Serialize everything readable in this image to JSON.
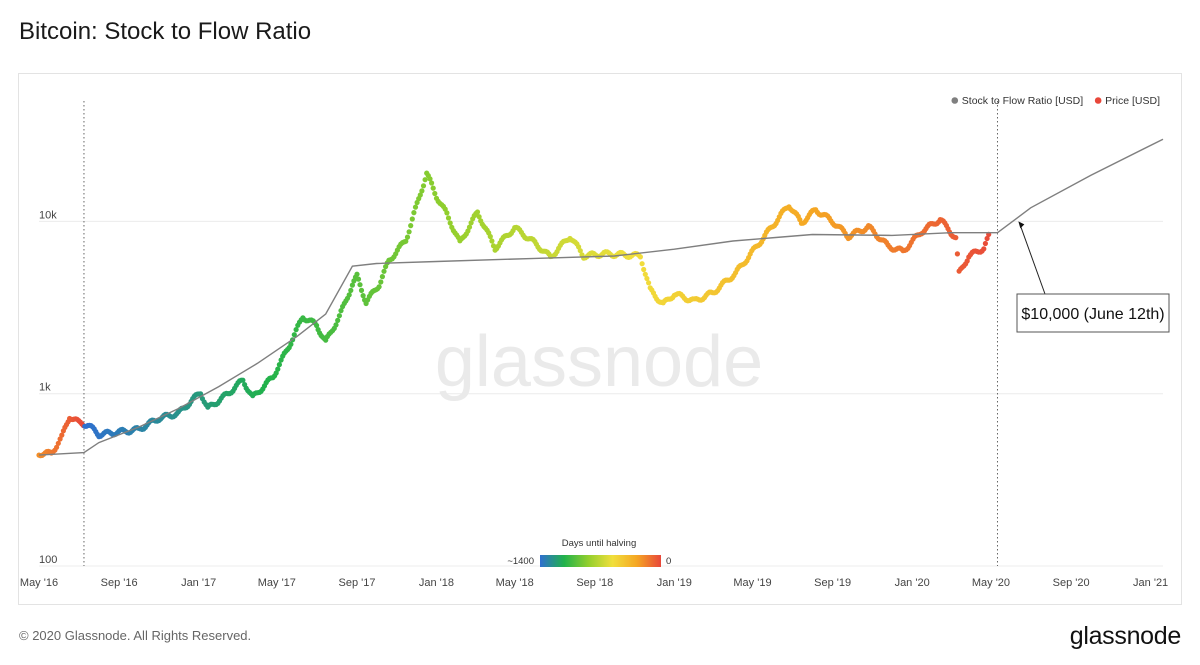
{
  "page": {
    "title": "Bitcoin: Stock to Flow Ratio",
    "copyright": "© 2020 Glassnode. All Rights Reserved.",
    "logo": "glassnode",
    "watermark": "glassnode"
  },
  "chart_data": {
    "type": "line",
    "title": "Bitcoin: Stock to Flow Ratio",
    "xlabel": "",
    "ylabel": "",
    "y_scale": "log",
    "ylim": [
      100,
      50000
    ],
    "y_ticks": [
      {
        "value": 100,
        "label": "100"
      },
      {
        "value": 1000,
        "label": "1k"
      },
      {
        "value": 10000,
        "label": "10k"
      }
    ],
    "xlim": [
      "2016-05-01",
      "2021-01-20"
    ],
    "x_ticks": [
      {
        "date": "2016-05-01",
        "label": "May '16"
      },
      {
        "date": "2016-09-01",
        "label": "Sep '16"
      },
      {
        "date": "2017-01-01",
        "label": "Jan '17"
      },
      {
        "date": "2017-05-01",
        "label": "May '17"
      },
      {
        "date": "2017-09-01",
        "label": "Sep '17"
      },
      {
        "date": "2018-01-01",
        "label": "Jan '18"
      },
      {
        "date": "2018-05-01",
        "label": "May '18"
      },
      {
        "date": "2018-09-01",
        "label": "Sep '18"
      },
      {
        "date": "2019-01-01",
        "label": "Jan '19"
      },
      {
        "date": "2019-05-01",
        "label": "May '19"
      },
      {
        "date": "2019-09-01",
        "label": "Sep '19"
      },
      {
        "date": "2020-01-01",
        "label": "Jan '20"
      },
      {
        "date": "2020-05-01",
        "label": "May '20"
      },
      {
        "date": "2020-09-01",
        "label": "Sep '20"
      },
      {
        "date": "2021-01-01",
        "label": "Jan '21"
      }
    ],
    "halving_lines": [
      "2016-07-09",
      "2020-05-11"
    ],
    "grid": true,
    "legend_position": "top-right",
    "legend": [
      {
        "name": "Stock to Flow Ratio [USD]",
        "color": "#7f7f7f"
      },
      {
        "name": "Price [USD]",
        "color": "#e8473a"
      }
    ],
    "series": [
      {
        "name": "Stock to Flow Ratio [USD]",
        "color": "#7f7f7f",
        "points": [
          [
            "2016-05-01",
            440
          ],
          [
            "2016-07-09",
            455
          ],
          [
            "2016-08-01",
            520
          ],
          [
            "2016-10-01",
            640
          ],
          [
            "2016-12-01",
            820
          ],
          [
            "2017-02-01",
            1100
          ],
          [
            "2017-04-01",
            1500
          ],
          [
            "2017-06-01",
            2150
          ],
          [
            "2017-07-15",
            2900
          ],
          [
            "2017-08-25",
            5500
          ],
          [
            "2017-10-01",
            5700
          ],
          [
            "2018-01-01",
            5850
          ],
          [
            "2018-06-01",
            6100
          ],
          [
            "2018-10-01",
            6300
          ],
          [
            "2019-01-01",
            6900
          ],
          [
            "2019-04-01",
            7700
          ],
          [
            "2019-08-01",
            8400
          ],
          [
            "2019-12-01",
            8300
          ],
          [
            "2020-03-01",
            8600
          ],
          [
            "2020-05-11",
            8600
          ],
          [
            "2020-07-01",
            12000
          ],
          [
            "2020-10-01",
            18500
          ],
          [
            "2021-01-20",
            30000
          ]
        ]
      },
      {
        "name": "Price [USD]",
        "points": [
          [
            "2016-05-01",
            450
          ],
          [
            "2016-05-20",
            450
          ],
          [
            "2016-06-05",
            560
          ],
          [
            "2016-06-17",
            740
          ],
          [
            "2016-07-01",
            680
          ],
          [
            "2016-07-15",
            660
          ],
          [
            "2016-08-01",
            580
          ],
          [
            "2016-09-01",
            600
          ],
          [
            "2016-10-01",
            620
          ],
          [
            "2016-11-01",
            720
          ],
          [
            "2016-12-01",
            770
          ],
          [
            "2017-01-04",
            1020
          ],
          [
            "2017-01-15",
            820
          ],
          [
            "2017-02-15",
            1000
          ],
          [
            "2017-03-10",
            1200
          ],
          [
            "2017-03-25",
            950
          ],
          [
            "2017-04-25",
            1250
          ],
          [
            "2017-05-20",
            1900
          ],
          [
            "2017-06-10",
            2800
          ],
          [
            "2017-07-01",
            2500
          ],
          [
            "2017-07-15",
            2000
          ],
          [
            "2017-08-05",
            2800
          ],
          [
            "2017-08-25",
            4300
          ],
          [
            "2017-09-01",
            4800
          ],
          [
            "2017-09-15",
            3400
          ],
          [
            "2017-10-05",
            4300
          ],
          [
            "2017-10-20",
            5900
          ],
          [
            "2017-11-15",
            7800
          ],
          [
            "2017-12-17",
            19000
          ],
          [
            "2018-01-01",
            14000
          ],
          [
            "2018-01-17",
            11000
          ],
          [
            "2018-02-06",
            7500
          ],
          [
            "2018-03-05",
            11300
          ],
          [
            "2018-04-01",
            7000
          ],
          [
            "2018-05-01",
            9200
          ],
          [
            "2018-06-01",
            7500
          ],
          [
            "2018-06-25",
            6200
          ],
          [
            "2018-07-25",
            8200
          ],
          [
            "2018-08-15",
            6300
          ],
          [
            "2018-09-15",
            6500
          ],
          [
            "2018-10-15",
            6400
          ],
          [
            "2018-11-10",
            6300
          ],
          [
            "2018-11-25",
            4000
          ],
          [
            "2018-12-15",
            3300
          ],
          [
            "2019-01-01",
            3800
          ],
          [
            "2019-02-01",
            3450
          ],
          [
            "2019-03-01",
            3850
          ],
          [
            "2019-04-05",
            5000
          ],
          [
            "2019-05-15",
            7800
          ],
          [
            "2019-06-26",
            12500
          ],
          [
            "2019-07-15",
            9800
          ],
          [
            "2019-08-06",
            11700
          ],
          [
            "2019-09-01",
            10000
          ],
          [
            "2019-09-25",
            8200
          ],
          [
            "2019-10-26",
            9300
          ],
          [
            "2019-11-25",
            7200
          ],
          [
            "2019-12-18",
            6700
          ],
          [
            "2020-01-15",
            8700
          ],
          [
            "2020-02-13",
            10300
          ],
          [
            "2020-03-08",
            8000
          ],
          [
            "2020-03-13",
            5000
          ],
          [
            "2020-03-28",
            6300
          ],
          [
            "2020-04-20",
            7000
          ],
          [
            "2020-04-30",
            8600
          ]
        ]
      }
    ],
    "color_scale": {
      "title": "Days until halving",
      "min_label": "~1400",
      "max_label": "0",
      "colors": [
        "#2f6fd0",
        "#21b24b",
        "#93cf2d",
        "#f1df3c",
        "#f5a623",
        "#e8473a"
      ]
    },
    "annotation": {
      "text": "$10,000 (June 12th)",
      "date": "2020-06-12",
      "value": 10000
    }
  }
}
